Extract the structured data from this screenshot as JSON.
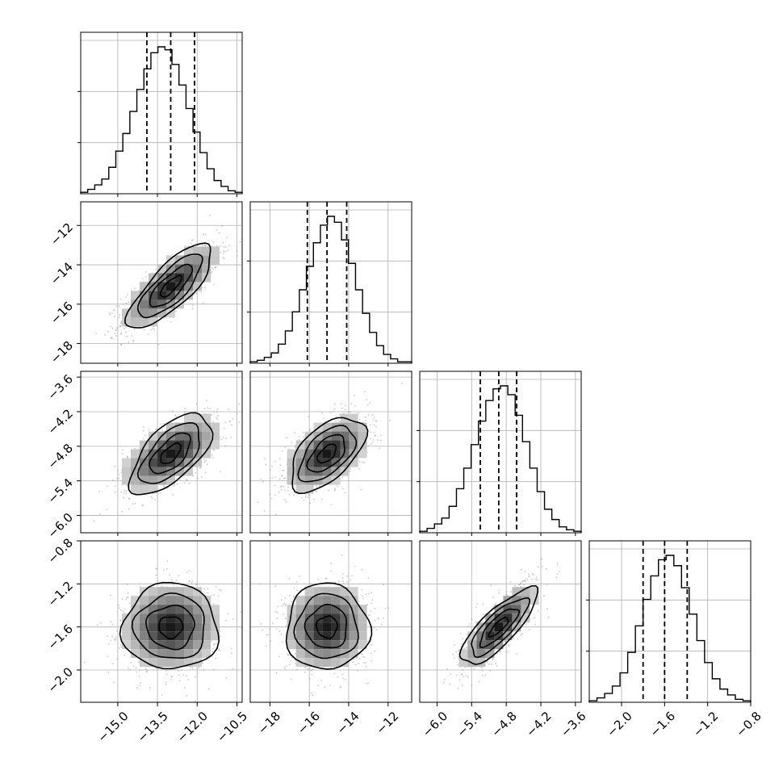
{
  "chart_data": {
    "type": "corner",
    "grid": true,
    "parameters": [
      {
        "ticks": [
          "−15.0",
          "−13.5",
          "−12.0",
          "−10.5"
        ],
        "tick_values": [
          -15.0,
          -13.5,
          -12.0,
          -10.5
        ],
        "range": [
          -16.4,
          -10.3
        ],
        "mean": -13.0,
        "sd": 0.9,
        "quantiles": [
          -13.9,
          -13.0,
          -12.1
        ],
        "hist": [
          1,
          3,
          6,
          10,
          18,
          29,
          41,
          56,
          71,
          85,
          96,
          100,
          98,
          88,
          74,
          58,
          42,
          28,
          17,
          9,
          5,
          2,
          1
        ]
      },
      {
        "ticks": [
          "−18",
          "−16",
          "−14",
          "−12"
        ],
        "tick_values": [
          -18,
          -16,
          -14,
          -12
        ],
        "range": [
          -19.0,
          -10.8
        ],
        "mean": -15.1,
        "sd": 1.05,
        "quantiles": [
          -16.1,
          -15.1,
          -14.1
        ],
        "hist": [
          1,
          2,
          4,
          7,
          13,
          22,
          35,
          50,
          66,
          82,
          94,
          100,
          96,
          84,
          68,
          50,
          34,
          21,
          12,
          6,
          3,
          1,
          1
        ]
      },
      {
        "ticks": [
          "−6.0",
          "−5.4",
          "−4.8",
          "−4.2",
          "−3.6"
        ],
        "tick_values": [
          -6.0,
          -5.4,
          -4.8,
          -4.2,
          -3.6
        ],
        "range": [
          -6.3,
          -3.5
        ],
        "mean": -4.93,
        "sd": 0.32,
        "quantiles": [
          -5.25,
          -4.93,
          -4.62
        ],
        "hist": [
          1,
          3,
          6,
          10,
          18,
          30,
          44,
          60,
          76,
          90,
          98,
          100,
          94,
          80,
          62,
          44,
          28,
          16,
          9,
          4,
          2,
          1
        ]
      },
      {
        "ticks": [
          "−2.0",
          "−1.6",
          "−1.2",
          "−0.8"
        ],
        "tick_values": [
          -2.0,
          -1.6,
          -1.2,
          -0.8
        ],
        "range": [
          -2.3,
          -0.8
        ],
        "mean": -1.6,
        "sd": 0.2,
        "quantiles": [
          -1.8,
          -1.6,
          -1.39
        ],
        "hist": [
          1,
          3,
          6,
          11,
          20,
          34,
          52,
          70,
          86,
          97,
          100,
          93,
          78,
          60,
          42,
          27,
          16,
          9,
          5,
          2,
          1
        ]
      }
    ],
    "correlations": {
      "1-0": 0.78,
      "2-0": 0.62,
      "2-1": 0.55,
      "3-0": 0.05,
      "3-1": 0.05,
      "3-2": 0.8
    },
    "colors": {
      "line": "#000000",
      "grid": "#b0b0b0",
      "scatter": "#9a9a9a"
    }
  }
}
